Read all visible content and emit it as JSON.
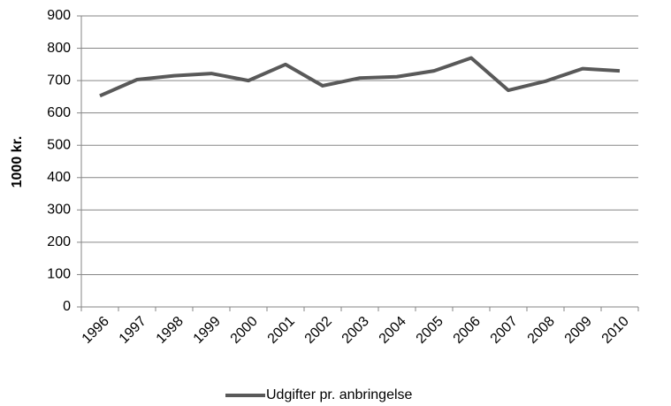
{
  "chart_data": {
    "type": "line",
    "y_label": "1000 kr.",
    "categories": [
      "1996",
      "1997",
      "1998",
      "1999",
      "2000",
      "2001",
      "2002",
      "2003",
      "2004",
      "2005",
      "2006",
      "2007",
      "2008",
      "2009",
      "2010"
    ],
    "series": [
      {
        "name": "Udgifter pr. anbringelse",
        "color": "#595959",
        "values": [
          653,
          703,
          715,
          722,
          700,
          750,
          684,
          708,
          712,
          730,
          770,
          670,
          698,
          737,
          730
        ]
      }
    ],
    "ylim": [
      0,
      900
    ],
    "yticks": [
      0,
      100,
      200,
      300,
      400,
      500,
      600,
      700,
      800,
      900
    ],
    "grid": true,
    "legend": "bottom"
  }
}
